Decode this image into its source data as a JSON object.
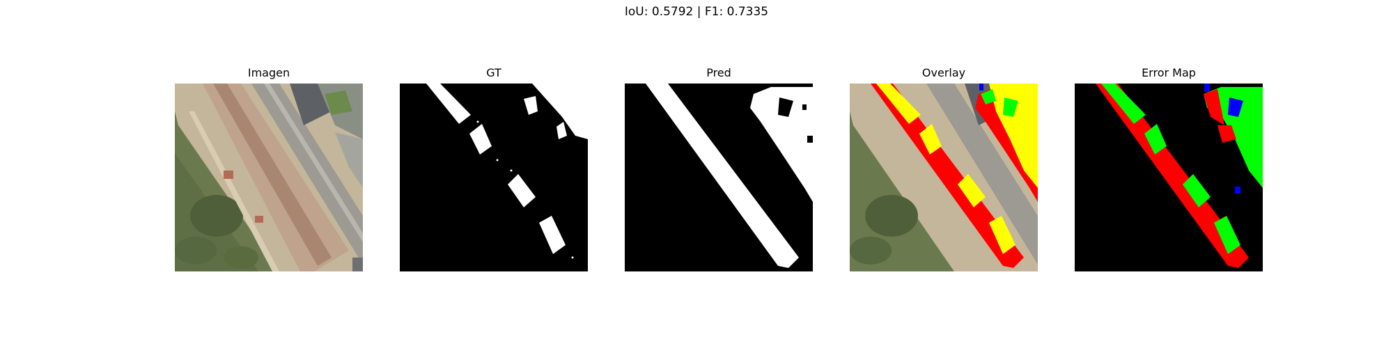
{
  "figure": {
    "suptitle": "IoU: 0.5792 | F1: 0.7335",
    "panels": [
      {
        "title": "Imagen"
      },
      {
        "title": "GT"
      },
      {
        "title": "Pred"
      },
      {
        "title": "Overlay"
      },
      {
        "title": "Error Map"
      }
    ]
  },
  "colors": {
    "true_positive": "#ffff00",
    "false_negative": "#ff0000",
    "false_positive": "#00ff00",
    "other_error": "#0000ff",
    "background": "#000000",
    "mask": "#ffffff"
  }
}
